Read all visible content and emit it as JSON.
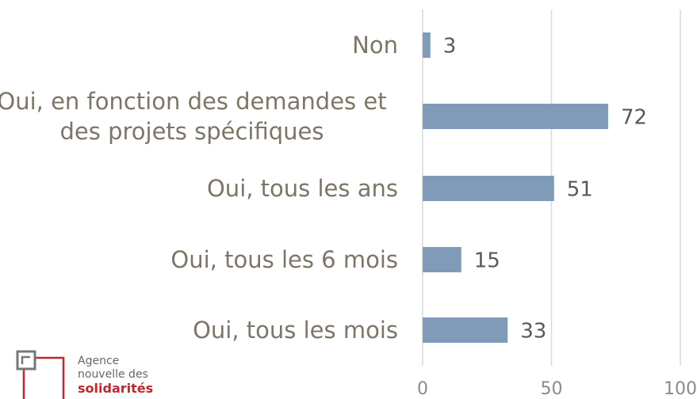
{
  "chart_data": {
    "type": "barh",
    "categories": [
      "Non",
      "Oui, en fonction des demandes et des projets spécifiques",
      "Oui, tous les ans",
      "Oui, tous les 6 mois",
      "Oui, tous les mois"
    ],
    "values": [
      3,
      72,
      51,
      15,
      33
    ],
    "color": "#7f9bb8",
    "xlim": [
      0,
      100
    ],
    "xticks": [
      0,
      50,
      100
    ],
    "grid": true
  },
  "logo": {
    "lines": [
      "Agence",
      "nouvelle des",
      "solidarités"
    ]
  }
}
